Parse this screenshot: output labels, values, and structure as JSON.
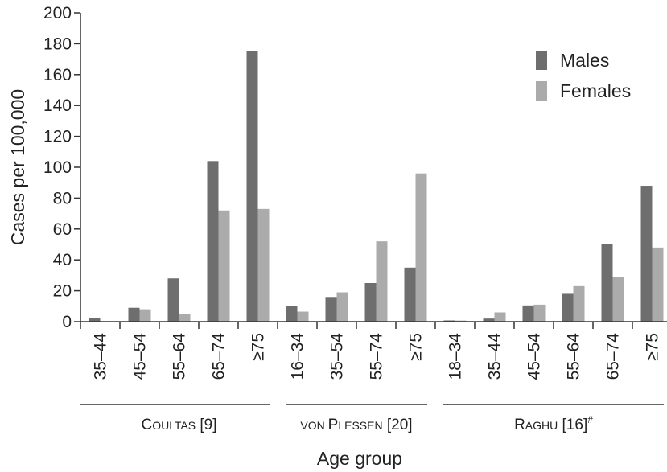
{
  "chart_data": {
    "type": "bar",
    "ylabel": "Cases per 100,000",
    "xlabel": "Age group",
    "ylim": [
      0,
      200
    ],
    "yticks": [
      0,
      20,
      40,
      60,
      80,
      100,
      120,
      140,
      160,
      180,
      200
    ],
    "grid": false,
    "legend_position": "top-right",
    "series": [
      {
        "name": "Males",
        "color": "#6e6e6e"
      },
      {
        "name": "Females",
        "color": "#ababab"
      }
    ],
    "groups": [
      {
        "label": "Coultas [9]",
        "label_parts": {
          "initial": "C",
          "rest": "OULTAS",
          "ref": " [9]",
          "sup": ""
        },
        "categories": [
          "35–44",
          "45–54",
          "55–64",
          "65–74",
          "≥75"
        ],
        "males": [
          2.5,
          9,
          28,
          104,
          175
        ],
        "females": [
          0,
          8,
          5,
          72,
          73
        ]
      },
      {
        "label": "von Plessen [20]",
        "label_parts": {
          "prefix": "VON ",
          "initial": "P",
          "rest": "LESSEN",
          "ref": "  [20]",
          "sup": ""
        },
        "categories": [
          "16–34",
          "35–54",
          "55–74",
          "≥75"
        ],
        "males": [
          10,
          16,
          25,
          35
        ],
        "females": [
          6.5,
          19,
          52,
          96
        ]
      },
      {
        "label": "Raghu [16]#",
        "label_parts": {
          "initial": "R",
          "rest": "AGHU",
          "ref": " [16]",
          "sup": "#"
        },
        "categories": [
          "18–34",
          "35–44",
          "45–54",
          "55–64",
          "65–74",
          "≥75"
        ],
        "males": [
          0.8,
          2,
          10.5,
          18,
          50,
          88
        ],
        "females": [
          0.7,
          6,
          11,
          23,
          29,
          48
        ]
      }
    ]
  }
}
